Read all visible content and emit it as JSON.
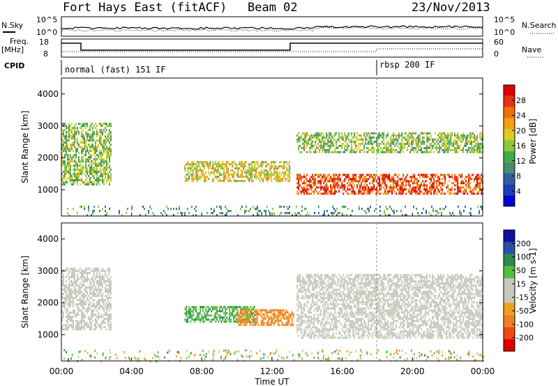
{
  "header": {
    "station": "Fort Hays East (fitACF)",
    "beam": "Beam 02",
    "date": "23/Nov/2013"
  },
  "strip": {
    "nsky_label": "N.Sky",
    "nsky_ticks": [
      "10^5",
      "10^0"
    ],
    "nsearch_label": "N.Search",
    "nsearch_ticks": [
      "10^5",
      "10^0"
    ],
    "freq_label": "Freq.",
    "freq_unit": "[MHz]",
    "freq_ticks": [
      "18",
      "8"
    ],
    "nave_label": "Nave",
    "nave_ticks": [
      "60",
      "0"
    ],
    "cpid_label": "CPID",
    "modes": [
      "normal (fast) 151 IF",
      "rbsp 200 IF"
    ]
  },
  "colors": {
    "power": [
      "#0000dd",
      "#1a3db8",
      "#2e5fa0",
      "#4a8a6e",
      "#3faa48",
      "#8dc83a",
      "#ddcc22",
      "#f4a012",
      "#f0700a",
      "#e83010",
      "#dd0000"
    ],
    "velocity": [
      "#1010a0",
      "#2a4fa8",
      "#2e8a4a",
      "#55c040",
      "#c8c8bc",
      "#c8c8bc",
      "#f0a020",
      "#f08020",
      "#ee4a10",
      "#dd0000"
    ],
    "ground_scatter": "#c8c8bc"
  },
  "chart_data": [
    {
      "type": "heatmap",
      "panel": "power",
      "xlabel": "",
      "ylabel": "Slant Range [km]",
      "x_ticks": [
        "00:00",
        "04:00",
        "08:00",
        "12:00",
        "16:00",
        "20:00",
        "00:00"
      ],
      "xlim_hours": [
        0,
        24
      ],
      "ylim_km": [
        180,
        4500
      ],
      "y_ticks": [
        1000,
        2000,
        3000,
        4000
      ],
      "colorbar": {
        "label": "Power [dB]",
        "ticks": [
          "4",
          "8",
          "12",
          "16",
          "20",
          "24",
          "28"
        ],
        "range": [
          0,
          30
        ]
      },
      "features": [
        {
          "region": "early evening spread scatter",
          "hours": [
            0.0,
            2.8
          ],
          "km": [
            1200,
            3100
          ],
          "power_dB": 14
        },
        {
          "region": "low-range ionospheric strip",
          "hours": [
            7.0,
            13.0
          ],
          "km": [
            1300,
            1900
          ],
          "power_dB": 18
        },
        {
          "region": "post-13 UT intense band",
          "hours": [
            13.4,
            24.0
          ],
          "km": [
            900,
            1500
          ],
          "power_dB": 26
        },
        {
          "region": "upper echo band",
          "hours": [
            13.4,
            24.0
          ],
          "km": [
            2200,
            2800
          ],
          "power_dB": 14
        },
        {
          "region": "near-range meteor echoes",
          "hours": [
            0.0,
            24.0
          ],
          "km": [
            200,
            500
          ],
          "power_dB": 10
        }
      ]
    },
    {
      "type": "heatmap",
      "panel": "velocity",
      "xlabel": "Time UT",
      "ylabel": "Slant Range [km]",
      "x_ticks": [
        "00:00",
        "04:00",
        "08:00",
        "12:00",
        "16:00",
        "20:00",
        "00:00"
      ],
      "xlim_hours": [
        0,
        24
      ],
      "ylim_km": [
        180,
        4500
      ],
      "y_ticks": [
        1000,
        2000,
        3000,
        4000
      ],
      "colorbar": {
        "label": "Velocity [m s-1]",
        "ticks": [
          "200",
          "100",
          "50",
          "15",
          "-15",
          "-50",
          "-100",
          "-200"
        ],
        "range": [
          -250,
          250
        ]
      },
      "features": [
        {
          "region": "early ground scatter",
          "hours": [
            0.0,
            2.8
          ],
          "km": [
            1200,
            3100
          ],
          "velocity_ms": 0
        },
        {
          "region": "eastward drift strip",
          "hours": [
            7.0,
            11.0
          ],
          "km": [
            1400,
            1900
          ],
          "velocity_ms": 40
        },
        {
          "region": "westward drift strip",
          "hours": [
            10.0,
            13.2
          ],
          "km": [
            1300,
            1800
          ],
          "velocity_ms": -60
        },
        {
          "region": "post-13 UT ground scatter",
          "hours": [
            13.4,
            24.0
          ],
          "km": [
            900,
            2900
          ],
          "velocity_ms": 0
        }
      ]
    }
  ]
}
